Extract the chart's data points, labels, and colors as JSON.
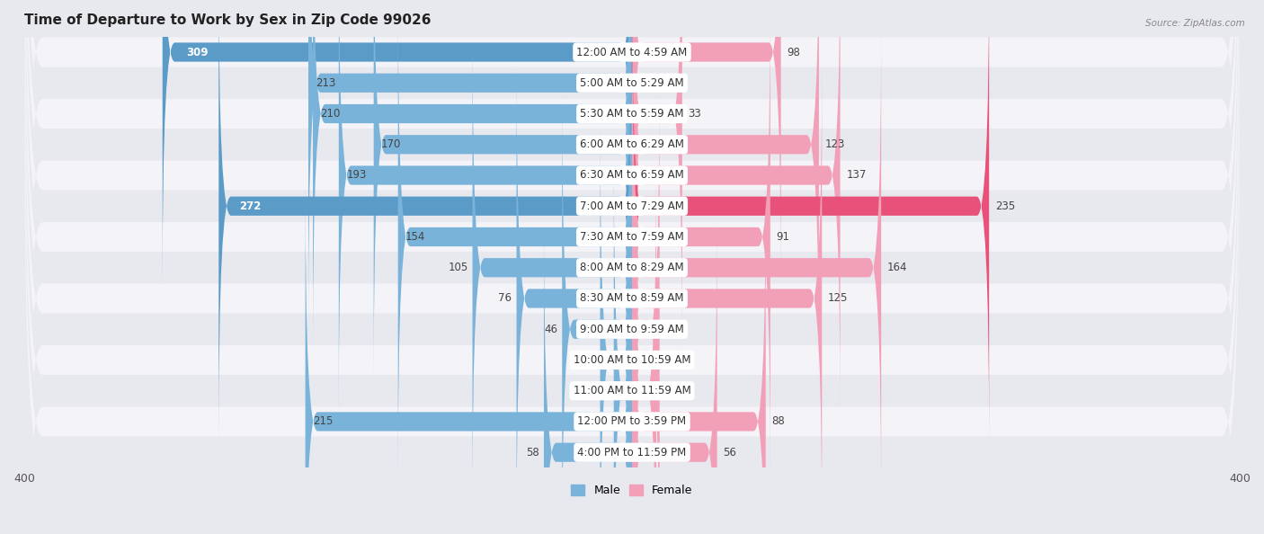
{
  "title": "Time of Departure to Work by Sex in Zip Code 99026",
  "source": "Source: ZipAtlas.com",
  "categories": [
    "12:00 AM to 4:59 AM",
    "5:00 AM to 5:29 AM",
    "5:30 AM to 5:59 AM",
    "6:00 AM to 6:29 AM",
    "6:30 AM to 6:59 AM",
    "7:00 AM to 7:29 AM",
    "7:30 AM to 7:59 AM",
    "8:00 AM to 8:29 AM",
    "8:30 AM to 8:59 AM",
    "9:00 AM to 9:59 AM",
    "10:00 AM to 10:59 AM",
    "11:00 AM to 11:59 AM",
    "12:00 PM to 3:59 PM",
    "4:00 PM to 11:59 PM"
  ],
  "male_values": [
    309,
    213,
    210,
    170,
    193,
    272,
    154,
    105,
    76,
    46,
    21,
    12,
    215,
    58
  ],
  "female_values": [
    98,
    0,
    33,
    123,
    137,
    235,
    91,
    164,
    125,
    18,
    18,
    16,
    88,
    56
  ],
  "male_color": "#7ab3d9",
  "female_color": "#f2a0b8",
  "highlight_male_indices": [
    0,
    5
  ],
  "highlight_female_indices": [
    5
  ],
  "highlight_male_color": "#5b9bc8",
  "highlight_female_color": "#e8527a",
  "axis_limit": 400,
  "row_light": "#f4f4f8",
  "row_dark": "#e8e8ef",
  "bg_color": "#e8e8ef",
  "title_fontsize": 11,
  "label_fontsize": 8.5,
  "tick_fontsize": 9
}
